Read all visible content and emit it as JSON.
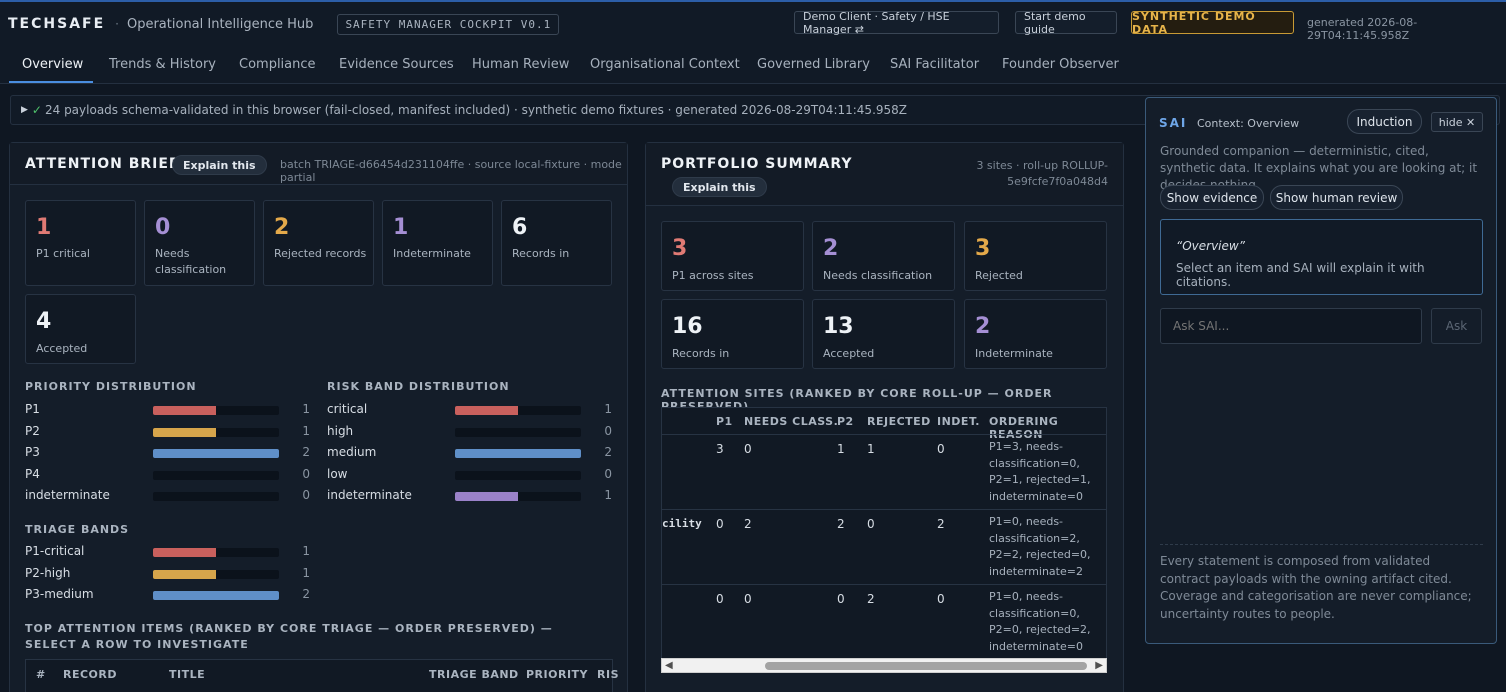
{
  "header": {
    "brand": "TECHSAFE",
    "separator": "·",
    "hub": "Operational Intelligence Hub",
    "cockpit": "SAFETY MANAGER COCKPIT V0.1",
    "client": "Demo Client · Safety / HSE Manager ⇄",
    "demo_guide": "Start demo guide",
    "synthetic": "SYNTHETIC DEMO DATA",
    "generated": "generated 2026-08-29T04:11:45.958Z"
  },
  "nav": {
    "tabs": [
      "Overview",
      "Trends & History",
      "Compliance",
      "Evidence Sources",
      "Human Review",
      "Organisational Context",
      "Governed Library",
      "SAI Facilitator",
      "Founder Observer"
    ]
  },
  "validation": {
    "triangle": "▶",
    "check": "✓",
    "text": "24 payloads schema-validated in this browser (fail-closed, manifest included) · synthetic demo fixtures · generated 2026-08-29T04:11:45.958Z"
  },
  "attention": {
    "title": "ATTENTION BRIEF",
    "explain": "Explain this",
    "meta": "batch TRIAGE-d66454d231104ffe · source local-fixture · mode partial",
    "cards": [
      {
        "num": "1",
        "label": "P1 critical",
        "color": "#e07a74"
      },
      {
        "num": "0",
        "label": "Needs classification",
        "color": "#a58fd4"
      },
      {
        "num": "2",
        "label": "Rejected records",
        "color": "#e4a94a"
      },
      {
        "num": "1",
        "label": "Indeterminate",
        "color": "#a58fd4"
      },
      {
        "num": "6",
        "label": "Records in",
        "color": "#eef2f6"
      },
      {
        "num": "4",
        "label": "Accepted",
        "color": "#eef2f6"
      }
    ],
    "priority_title": "PRIORITY DISTRIBUTION",
    "priority": [
      {
        "label": "P1",
        "count": "1",
        "fraction": 0.5,
        "color": "#c9605d"
      },
      {
        "label": "P2",
        "count": "1",
        "fraction": 0.5,
        "color": "#d6a54b"
      },
      {
        "label": "P3",
        "count": "2",
        "fraction": 1.0,
        "color": "#5f8fc8"
      },
      {
        "label": "P4",
        "count": "0",
        "fraction": 0,
        "color": "#5f8fc8"
      },
      {
        "label": "indeterminate",
        "count": "0",
        "fraction": 0,
        "color": "#9b82c9"
      }
    ],
    "risk_title": "RISK BAND DISTRIBUTION",
    "risk": [
      {
        "label": "critical",
        "count": "1",
        "fraction": 0.5,
        "color": "#c9605d"
      },
      {
        "label": "high",
        "count": "0",
        "fraction": 0,
        "color": "#d6a54b"
      },
      {
        "label": "medium",
        "count": "2",
        "fraction": 1.0,
        "color": "#5f8fc8"
      },
      {
        "label": "low",
        "count": "0",
        "fraction": 0,
        "color": "#5f8fc8"
      },
      {
        "label": "indeterminate",
        "count": "1",
        "fraction": 0.5,
        "color": "#9b82c9"
      }
    ],
    "triage_title": "TRIAGE BANDS",
    "triage": [
      {
        "label": "P1-critical",
        "count": "1",
        "fraction": 0.5,
        "color": "#c9605d"
      },
      {
        "label": "P2-high",
        "count": "1",
        "fraction": 0.5,
        "color": "#d6a54b"
      },
      {
        "label": "P3-medium",
        "count": "2",
        "fraction": 1.0,
        "color": "#5f8fc8"
      }
    ],
    "top_title": "TOP ATTENTION ITEMS (RANKED BY CORE TRIAGE — ORDER PRESERVED) — SELECT A ROW TO INVESTIGATE",
    "top_columns": [
      "#",
      "RECORD",
      "TITLE",
      "TRIAGE BAND",
      "PRIORITY",
      "RIS"
    ]
  },
  "portfolio": {
    "title": "PORTFOLIO SUMMARY",
    "explain": "Explain this",
    "meta": "3 sites · roll-up ROLLUP-5e9fcfe7f0a048d4",
    "cards": [
      {
        "num": "3",
        "label": "P1 across sites",
        "color": "#e07a74"
      },
      {
        "num": "2",
        "label": "Needs classification",
        "color": "#a58fd4"
      },
      {
        "num": "3",
        "label": "Rejected",
        "color": "#e4a94a"
      },
      {
        "num": "16",
        "label": "Records in",
        "color": "#eef2f6"
      },
      {
        "num": "13",
        "label": "Accepted",
        "color": "#eef2f6"
      },
      {
        "num": "2",
        "label": "Indeterminate",
        "color": "#a58fd4"
      }
    ],
    "sites_title": "ATTENTION SITES (RANKED BY CORE ROLL-UP — ORDER PRESERVED)",
    "columns": [
      "P1",
      "NEEDS CLASS.",
      "P2",
      "REJECTED",
      "INDET.",
      "ORDERING REASON"
    ],
    "rows": [
      {
        "site": "",
        "p1": "3",
        "needs": "0",
        "p2": "1",
        "rejected": "1",
        "indet": "0",
        "reason": "P1=3, needs-classification=0, P2=1, rejected=1, indeterminate=0"
      },
      {
        "site": "cility",
        "p1": "0",
        "needs": "2",
        "p2": "2",
        "rejected": "0",
        "indet": "2",
        "reason": "P1=0, needs-classification=2, P2=2, rejected=0, indeterminate=2"
      },
      {
        "site": "",
        "p1": "0",
        "needs": "0",
        "p2": "0",
        "rejected": "2",
        "indet": "0",
        "reason": "P1=0, needs-classification=0, P2=0, rejected=2, indeterminate=0"
      }
    ]
  },
  "sai": {
    "brand": "SAI",
    "context": "Context: Overview",
    "induction": "Induction",
    "hide": "hide ✕",
    "intro": "Grounded companion — deterministic, cited, synthetic data. It explains what you are looking at; it decides nothing.",
    "show_evidence": "Show evidence",
    "show_review": "Show human review",
    "quote_title": "“Overview”",
    "quote_body": "Select an item and SAI will explain it with citations.",
    "ask_placeholder": "Ask SAI...",
    "ask_button": "Ask",
    "footer": "Every statement is composed from validated contract payloads with the owning artifact cited. Coverage and categorisation are never compliance; uncertainty routes to people."
  }
}
